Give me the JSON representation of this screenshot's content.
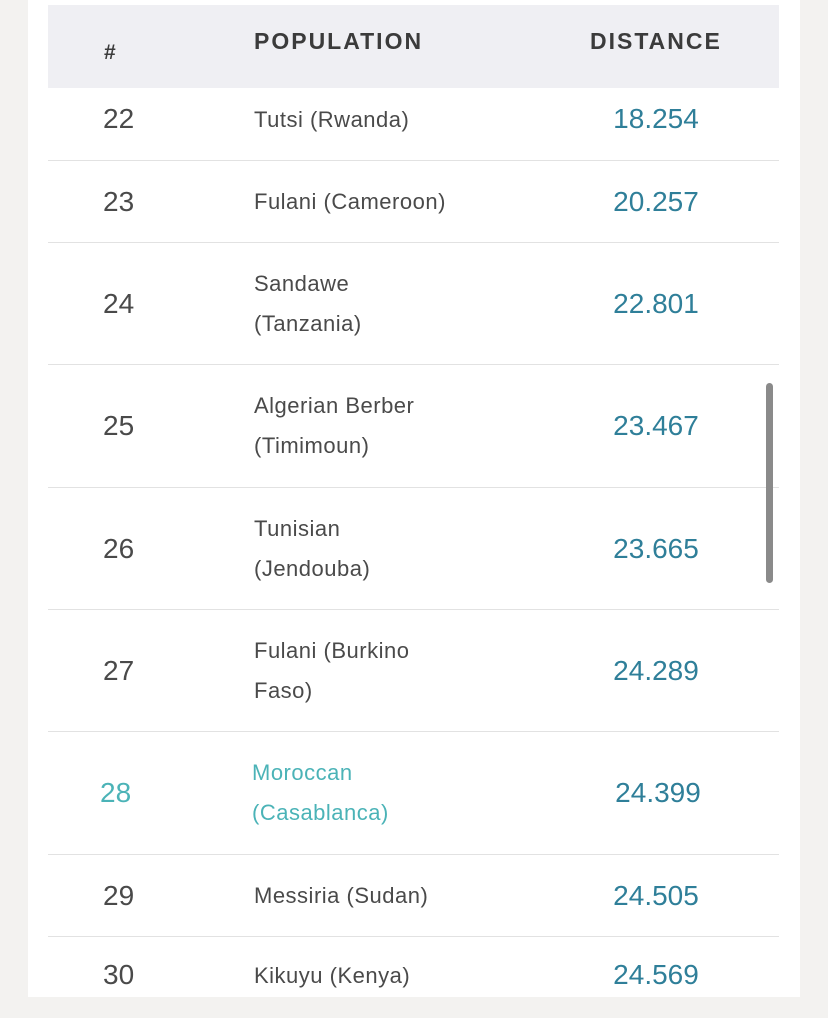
{
  "table": {
    "headers": {
      "num": "#",
      "population": "POPULATION",
      "distance": "DISTANCE"
    },
    "rows": [
      {
        "num": "22",
        "population": "Tutsi (Rwanda)",
        "distance": "18.254",
        "highlight": false
      },
      {
        "num": "23",
        "population": "Fulani (Cameroon)",
        "distance": "20.257",
        "highlight": false
      },
      {
        "num": "24",
        "population": "Sandawe (Tanzania)",
        "distance": "22.801",
        "highlight": false
      },
      {
        "num": "25",
        "population": "Algerian Berber (Timimoun)",
        "distance": "23.467",
        "highlight": false
      },
      {
        "num": "26",
        "population": "Tunisian (Jendouba)",
        "distance": "23.665",
        "highlight": false
      },
      {
        "num": "27",
        "population": "Fulani (Burkino Faso)",
        "distance": "24.289",
        "highlight": false
      },
      {
        "num": "28",
        "population": "Moroccan (Casablanca)",
        "distance": "24.399",
        "highlight": true
      },
      {
        "num": "29",
        "population": "Messiria (Sudan)",
        "distance": "24.505",
        "highlight": false
      },
      {
        "num": "30",
        "population": "Kikuyu (Kenya)",
        "distance": "24.569",
        "highlight": false
      }
    ]
  },
  "colors": {
    "distance": "#2f7f99",
    "highlight": "#4bb3b7",
    "header_bg": "#efeff3"
  }
}
